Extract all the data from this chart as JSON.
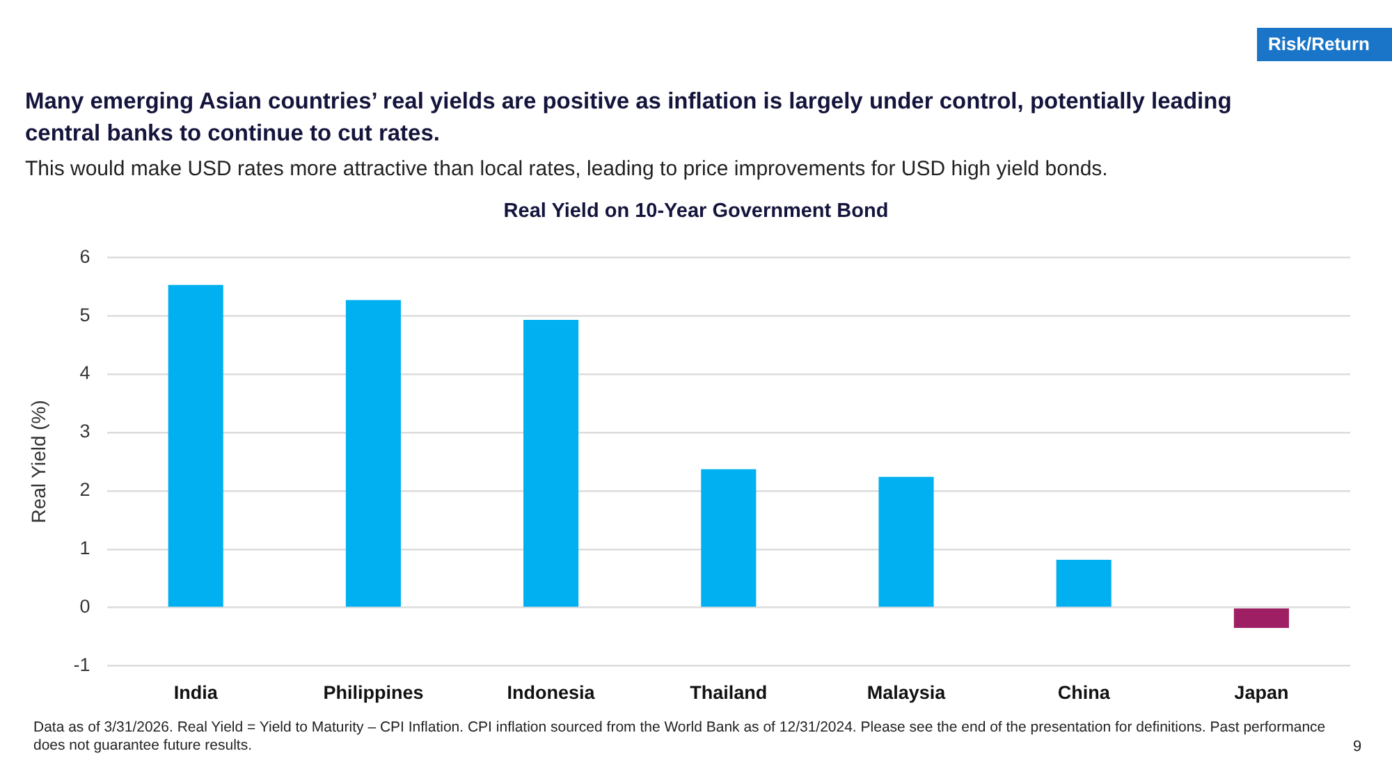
{
  "chart_data": {
    "type": "bar",
    "title": "Many emerging Asian countries’ real yields are positive as inflation is largely under control, potentially leading central banks to continue to cut rates.",
    "subtitle": "This would make USD rates more attractive than local rates, leading to price improvements for USD high yield bonds.",
    "annotations": [
      "Real Yield on 10-Year Government Bond",
      "Risk/Return",
      "Data as of 3/31/2026. Real Yield = Yield to Maturity – CPI Inflation. CPI inflation sourced from the World Bank as of 12/31/2024. Please see the end of the presentation for definitions. Past performance does not guarantee future results.",
      "9"
    ],
    "ylabel": "Real Yield (%)",
    "categories": [
      "India",
      "Philippines",
      "Indonesia",
      "Thailand",
      "Malaysia",
      "China",
      "Japan"
    ],
    "values": [
      5.53,
      5.27,
      4.93,
      2.37,
      2.24,
      0.82,
      -0.35
    ],
    "colors": [
      "#00b0f0",
      "#00b0f0",
      "#00b0f0",
      "#00b0f0",
      "#00b0f0",
      "#00b0f0",
      "#9e1f63"
    ],
    "ylim": [
      -1,
      6
    ],
    "yticks": [
      -1,
      0,
      1,
      2,
      3,
      4,
      5,
      6
    ],
    "grid": "y"
  }
}
